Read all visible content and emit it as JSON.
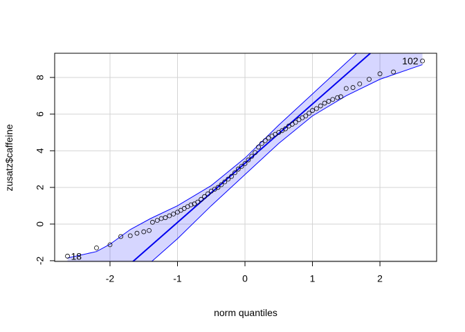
{
  "chart_data": {
    "type": "qq",
    "x_label": "norm quantiles",
    "y_label": "zusatz$caffeine",
    "xlim": [
      -2.82,
      2.84
    ],
    "ylim": [
      -2.04,
      9.32
    ],
    "xticks": [
      -2,
      -1,
      0,
      1,
      2
    ],
    "yticks": [
      -2,
      0,
      2,
      4,
      6,
      8
    ],
    "grid": true,
    "point_color": "#000000",
    "line_color": "#0000ee",
    "band_color": "#0000ff",
    "x": [
      -2.63,
      -2.2,
      -2.0,
      -1.84,
      -1.7,
      -1.6,
      -1.5,
      -1.42,
      -1.37,
      -1.3,
      -1.24,
      -1.18,
      -1.12,
      -1.06,
      -1.0,
      -0.95,
      -0.9,
      -0.85,
      -0.8,
      -0.75,
      -0.7,
      -0.65,
      -0.6,
      -0.55,
      -0.5,
      -0.45,
      -0.4,
      -0.35,
      -0.3,
      -0.25,
      -0.2,
      -0.15,
      -0.1,
      -0.05,
      0,
      0.05,
      0.1,
      0.15,
      0.2,
      0.25,
      0.3,
      0.35,
      0.4,
      0.45,
      0.5,
      0.55,
      0.6,
      0.65,
      0.7,
      0.75,
      0.8,
      0.85,
      0.9,
      0.95,
      1.0,
      1.06,
      1.12,
      1.18,
      1.24,
      1.3,
      1.37,
      1.42,
      1.5,
      1.6,
      1.7,
      1.84,
      2.0,
      2.2,
      2.63
    ],
    "values": [
      -1.75,
      -1.3,
      -1.13,
      -0.68,
      -0.64,
      -0.5,
      -0.42,
      -0.35,
      0.1,
      0.2,
      0.3,
      0.35,
      0.45,
      0.55,
      0.65,
      0.75,
      0.85,
      0.95,
      1.05,
      1.1,
      1.2,
      1.35,
      1.5,
      1.65,
      1.8,
      1.9,
      2.0,
      2.15,
      2.3,
      2.45,
      2.6,
      2.8,
      3.0,
      3.15,
      3.3,
      3.5,
      3.7,
      3.9,
      4.2,
      4.4,
      4.55,
      4.7,
      4.8,
      4.9,
      5.0,
      5.1,
      5.2,
      5.35,
      5.45,
      5.55,
      5.7,
      5.8,
      5.9,
      6.05,
      6.2,
      6.3,
      6.45,
      6.6,
      6.7,
      6.8,
      6.9,
      6.95,
      7.4,
      7.45,
      7.65,
      7.9,
      8.2,
      8.3,
      8.9
    ],
    "reference_line": {
      "intercept": 3.32,
      "slope": 3.23
    },
    "envelope": {
      "x": [
        -2.63,
        -2.2,
        -2,
        -1.7,
        -1.4,
        -1,
        -0.5,
        0,
        0.5,
        1,
        1.5,
        2,
        2.63
      ],
      "upper": [
        -1.85,
        -1.5,
        -1.1,
        -0.3,
        0.3,
        1.0,
        2.1,
        3.6,
        5.4,
        7.1,
        8.8,
        10.5,
        12.5
      ],
      "lower": [
        -3.6,
        -3.2,
        -2.9,
        -2.5,
        -2.1,
        -0.8,
        1.0,
        2.7,
        4.4,
        5.9,
        7.0,
        7.9,
        8.7
      ]
    },
    "annotations": [
      "18",
      "102"
    ]
  }
}
